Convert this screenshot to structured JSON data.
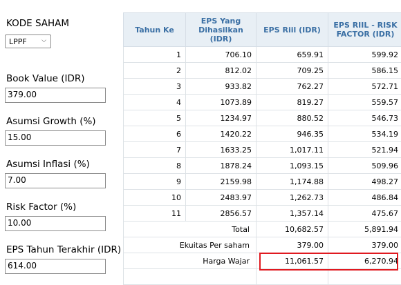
{
  "form": {
    "kode_saham_label": "KODE SAHAM",
    "kode_saham_value": "LPPF",
    "book_value_label": "Book Value (IDR)",
    "book_value": "379.00",
    "growth_label": "Asumsi Growth (%)",
    "growth": "15.00",
    "inflasi_label": "Asumsi Inflasi (%)",
    "inflasi": "7.00",
    "risk_label": "Risk Factor (%)",
    "risk": "10.00",
    "eps_label": "EPS Tahun Terakhir (IDR)",
    "eps": "614.00"
  },
  "table": {
    "headers": [
      "Tahun Ke",
      "EPS Yang Dihasilkan (IDR)",
      "EPS Riil (IDR)",
      "EPS RIIL - RISK FACTOR (IDR)"
    ],
    "rows": [
      [
        "1",
        "706.10",
        "659.91",
        "599.92"
      ],
      [
        "2",
        "812.02",
        "709.25",
        "586.15"
      ],
      [
        "3",
        "933.82",
        "762.27",
        "572.71"
      ],
      [
        "4",
        "1073.89",
        "819.27",
        "559.57"
      ],
      [
        "5",
        "1234.97",
        "880.52",
        "546.73"
      ],
      [
        "6",
        "1420.22",
        "946.35",
        "534.19"
      ],
      [
        "7",
        "1633.25",
        "1,017.11",
        "521.94"
      ],
      [
        "8",
        "1878.24",
        "1,093.15",
        "509.96"
      ],
      [
        "9",
        "2159.98",
        "1,174.88",
        "498.27"
      ],
      [
        "10",
        "2483.97",
        "1,262.73",
        "486.84"
      ],
      [
        "11",
        "2856.57",
        "1,357.14",
        "475.67"
      ]
    ],
    "total_label": "Total",
    "total_riil": "10,682.57",
    "total_risk": "5,891.94",
    "ekuitas_label": "Ekuitas Per saham",
    "ekuitas_riil": "379.00",
    "ekuitas_risk": "379.00",
    "harga_label": "Harga Wajar",
    "harga_riil": "11,061.57",
    "harga_risk": "6,270.94"
  }
}
